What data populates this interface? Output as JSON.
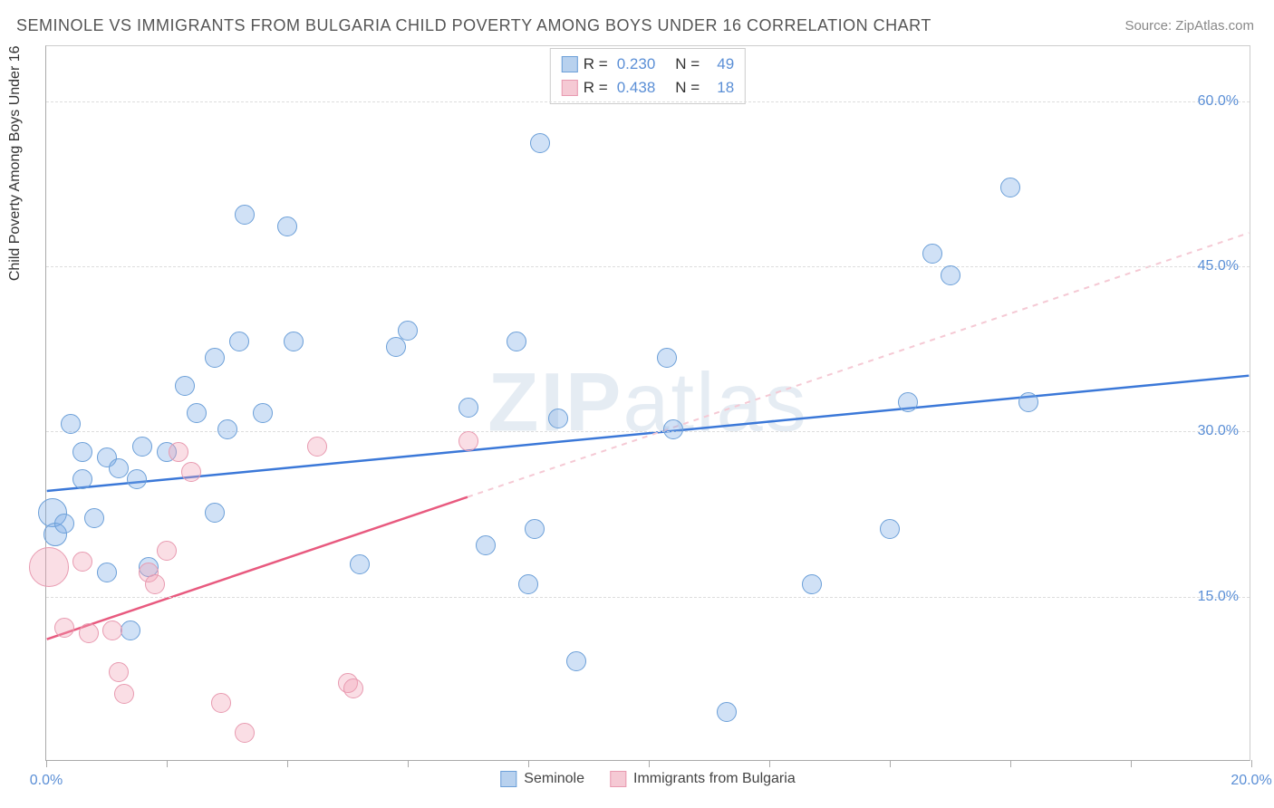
{
  "title": "SEMINOLE VS IMMIGRANTS FROM BULGARIA CHILD POVERTY AMONG BOYS UNDER 16 CORRELATION CHART",
  "source": "Source: ZipAtlas.com",
  "y_axis_label": "Child Poverty Among Boys Under 16",
  "watermark_prefix": "ZIP",
  "watermark_suffix": "atlas",
  "chart": {
    "type": "scatter",
    "xlim": [
      0,
      20
    ],
    "ylim": [
      0,
      65
    ],
    "x_ticks": [
      0,
      2,
      4,
      6,
      8,
      10,
      12,
      14,
      16,
      18,
      20
    ],
    "x_tick_labels": {
      "0": "0.0%",
      "20": "20.0%"
    },
    "y_gridlines": [
      15,
      30,
      45,
      60
    ],
    "y_tick_labels": {
      "15": "15.0%",
      "30": "30.0%",
      "45": "45.0%",
      "60": "60.0%"
    },
    "background_color": "#ffffff",
    "grid_color": "#dddddd",
    "axis_color": "#aaaaaa",
    "tick_label_color": "#5b8fd6"
  },
  "series": [
    {
      "name": "Seminole",
      "fill_color": "rgba(120, 170, 230, 0.35)",
      "stroke_color": "#6b9fd8",
      "swatch_fill": "#b8d1ee",
      "swatch_border": "#6b9fd8",
      "line_color": "#3b78d8",
      "line_dash_color": "#b8d1ee",
      "R": "0.230",
      "N": "49",
      "point_radius": 11,
      "trend": {
        "x1": 0,
        "y1": 24.5,
        "x2": 20,
        "y2": 35.0,
        "solid_until_x": 20
      },
      "points": [
        {
          "x": 0.1,
          "y": 22.5,
          "r": 16
        },
        {
          "x": 0.15,
          "y": 20.5,
          "r": 13
        },
        {
          "x": 0.3,
          "y": 21.5
        },
        {
          "x": 0.4,
          "y": 30.5
        },
        {
          "x": 0.6,
          "y": 25.5
        },
        {
          "x": 0.6,
          "y": 28.0
        },
        {
          "x": 0.8,
          "y": 22.0
        },
        {
          "x": 1.0,
          "y": 27.5
        },
        {
          "x": 1.0,
          "y": 17.0
        },
        {
          "x": 1.2,
          "y": 26.5
        },
        {
          "x": 1.4,
          "y": 11.8
        },
        {
          "x": 1.5,
          "y": 25.5
        },
        {
          "x": 1.6,
          "y": 28.5
        },
        {
          "x": 1.7,
          "y": 17.5
        },
        {
          "x": 2.0,
          "y": 28.0
        },
        {
          "x": 2.3,
          "y": 34.0
        },
        {
          "x": 2.5,
          "y": 31.5
        },
        {
          "x": 2.8,
          "y": 22.5
        },
        {
          "x": 2.8,
          "y": 36.5
        },
        {
          "x": 3.0,
          "y": 30.0
        },
        {
          "x": 3.2,
          "y": 38.0
        },
        {
          "x": 3.3,
          "y": 49.5
        },
        {
          "x": 3.6,
          "y": 31.5
        },
        {
          "x": 4.0,
          "y": 48.5
        },
        {
          "x": 4.1,
          "y": 38.0
        },
        {
          "x": 5.2,
          "y": 17.8
        },
        {
          "x": 5.8,
          "y": 37.5
        },
        {
          "x": 6.0,
          "y": 39.0
        },
        {
          "x": 7.0,
          "y": 32.0
        },
        {
          "x": 7.3,
          "y": 19.5
        },
        {
          "x": 7.8,
          "y": 38.0
        },
        {
          "x": 8.0,
          "y": 16.0
        },
        {
          "x": 8.1,
          "y": 21.0
        },
        {
          "x": 8.2,
          "y": 56.0
        },
        {
          "x": 8.5,
          "y": 31.0
        },
        {
          "x": 8.8,
          "y": 9.0
        },
        {
          "x": 10.3,
          "y": 36.5
        },
        {
          "x": 10.4,
          "y": 30.0
        },
        {
          "x": 11.3,
          "y": 4.4
        },
        {
          "x": 12.7,
          "y": 16.0
        },
        {
          "x": 14.0,
          "y": 21.0
        },
        {
          "x": 14.3,
          "y": 32.5
        },
        {
          "x": 14.7,
          "y": 46.0
        },
        {
          "x": 15.0,
          "y": 44.0
        },
        {
          "x": 16.0,
          "y": 52.0
        },
        {
          "x": 16.3,
          "y": 32.5
        }
      ]
    },
    {
      "name": "Immigrants from Bulgaria",
      "fill_color": "rgba(240, 160, 180, 0.35)",
      "stroke_color": "#e89ab0",
      "swatch_fill": "#f5c9d4",
      "swatch_border": "#e89ab0",
      "line_color": "#e85a7f",
      "line_dash_color": "#f5c9d4",
      "R": "0.438",
      "N": "18",
      "point_radius": 11,
      "trend": {
        "x1": 0,
        "y1": 11.0,
        "x2": 20,
        "y2": 48.0,
        "solid_until_x": 7.0
      },
      "points": [
        {
          "x": 0.05,
          "y": 17.5,
          "r": 22
        },
        {
          "x": 0.3,
          "y": 12.0
        },
        {
          "x": 0.6,
          "y": 18.0
        },
        {
          "x": 0.7,
          "y": 11.5
        },
        {
          "x": 1.1,
          "y": 11.8
        },
        {
          "x": 1.2,
          "y": 8.0
        },
        {
          "x": 1.3,
          "y": 6.0
        },
        {
          "x": 1.7,
          "y": 17.0
        },
        {
          "x": 1.8,
          "y": 16.0
        },
        {
          "x": 2.0,
          "y": 19.0
        },
        {
          "x": 2.2,
          "y": 28.0
        },
        {
          "x": 2.4,
          "y": 26.2
        },
        {
          "x": 2.9,
          "y": 5.2
        },
        {
          "x": 3.3,
          "y": 2.5
        },
        {
          "x": 4.5,
          "y": 28.5
        },
        {
          "x": 5.0,
          "y": 7.0
        },
        {
          "x": 5.1,
          "y": 6.5
        },
        {
          "x": 7.0,
          "y": 29.0
        }
      ]
    }
  ],
  "bottom_legend": [
    {
      "label": "Seminole",
      "swatch_fill": "#b8d1ee",
      "swatch_border": "#6b9fd8"
    },
    {
      "label": "Immigrants from Bulgaria",
      "swatch_fill": "#f5c9d4",
      "swatch_border": "#e89ab0"
    }
  ]
}
